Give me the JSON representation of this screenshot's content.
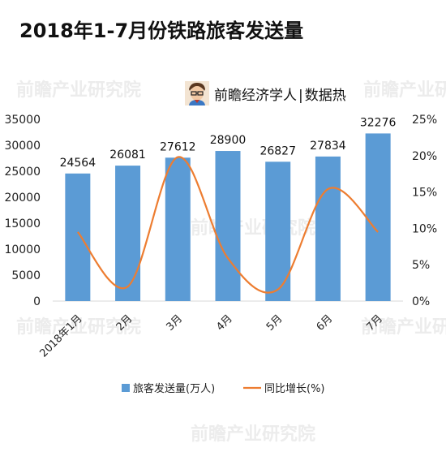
{
  "page": {
    "title": "2018年1-7月份铁路旅客发送量",
    "byline": {
      "name": "前瞻经济学人",
      "separator": "|",
      "tag": "数据热"
    }
  },
  "watermark": {
    "text": "前瞻产业研究院"
  },
  "colors": {
    "bar": "#5b9bd5",
    "line": "#ed7d31",
    "axis": "#d9d9d9"
  },
  "chart_data": {
    "type": "bar",
    "categories": [
      "2018年1月",
      "2月",
      "3月",
      "4月",
      "5月",
      "6月",
      "7月"
    ],
    "series": [
      {
        "name": "旅客发送量(万人)",
        "type": "bar",
        "axis": "left",
        "values": [
          24564,
          26081,
          27612,
          28900,
          26827,
          27834,
          32276
        ]
      },
      {
        "name": "同比增长(%)",
        "type": "line",
        "axis": "right",
        "values": [
          9.5,
          2.0,
          19.8,
          5.9,
          1.6,
          15.4,
          9.5
        ]
      }
    ],
    "y_left": {
      "ticks": [
        "0",
        "5000",
        "10000",
        "15000",
        "20000",
        "25000",
        "30000",
        "35000"
      ],
      "range": [
        0,
        35000
      ]
    },
    "y_right": {
      "ticks": [
        "0%",
        "5%",
        "10%",
        "15%",
        "20%",
        "25%"
      ],
      "range": [
        0,
        25
      ]
    },
    "data_labels": [
      "24564",
      "26081",
      "27612",
      "28900",
      "26827",
      "27834",
      "32276"
    ],
    "legend_position": "bottom"
  }
}
